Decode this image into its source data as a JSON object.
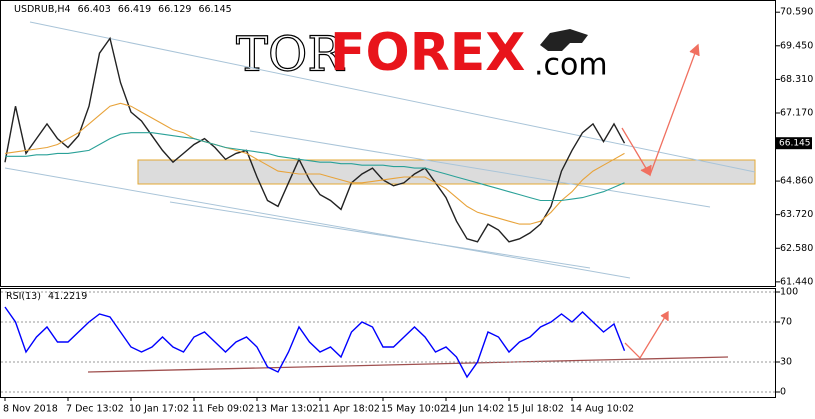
{
  "watermark": {
    "brand_light": "TOR",
    "brand_bold": "FOREX",
    "suffix": ".com"
  },
  "chart_data": [
    {
      "type": "line",
      "title": "USDRUB,H4",
      "ohlc": [
        66.403,
        66.419,
        66.129,
        66.145
      ],
      "last_price": 66.145,
      "categories": [
        "8 Nov 2018",
        null,
        null,
        null,
        null,
        null,
        "7 Dec 13:02",
        null,
        null,
        null,
        null,
        null,
        "10 Jan 17:02",
        null,
        null,
        null,
        null,
        null,
        "11 Feb 09:02",
        null,
        null,
        null,
        null,
        null,
        "13 Mar 13:02",
        null,
        null,
        null,
        null,
        null,
        "11 Apr 18:02",
        null,
        null,
        null,
        null,
        null,
        "15 May 10:02",
        null,
        null,
        null,
        null,
        null,
        "14 Jun 14:02",
        null,
        null,
        null,
        null,
        null,
        "15 Jul 18:02",
        null,
        null,
        null,
        null,
        null,
        "14 Aug 10:02",
        null,
        null,
        null,
        null,
        null
      ],
      "series": [
        {
          "color": "#222222",
          "values": [
            65.5,
            67.4,
            65.8,
            66.3,
            66.8,
            66.3,
            66.0,
            66.4,
            67.4,
            69.2,
            69.7,
            68.2,
            67.2,
            66.9,
            66.4,
            65.9,
            65.5,
            65.8,
            66.1,
            66.3,
            66.0,
            65.6,
            65.8,
            65.9,
            65.0,
            64.2,
            64.0,
            64.8,
            65.6,
            64.9,
            64.4,
            64.2,
            63.9,
            64.8,
            65.1,
            65.3,
            64.9,
            64.7,
            64.8,
            65.1,
            65.3,
            64.8,
            64.3,
            63.5,
            62.9,
            62.8,
            63.4,
            63.2,
            62.8,
            62.9,
            63.1,
            63.4,
            64.0,
            65.2,
            65.9,
            66.5,
            66.8,
            66.2,
            66.8,
            66.145
          ]
        },
        {
          "color": "#e8a33a",
          "values": [
            65.8,
            65.85,
            65.9,
            65.95,
            66.0,
            66.1,
            66.3,
            66.5,
            66.8,
            67.1,
            67.4,
            67.5,
            67.4,
            67.2,
            67.0,
            66.8,
            66.6,
            66.5,
            66.3,
            66.2,
            66.1,
            66.0,
            65.9,
            65.8,
            65.6,
            65.4,
            65.2,
            65.15,
            65.1,
            65.1,
            65.1,
            65.0,
            64.9,
            64.8,
            64.8,
            64.85,
            64.9,
            64.95,
            65.0,
            65.0,
            65.0,
            64.8,
            64.6,
            64.3,
            64.0,
            63.8,
            63.7,
            63.6,
            63.5,
            63.4,
            63.4,
            63.5,
            63.8,
            64.2,
            64.5,
            64.9,
            65.2,
            65.4,
            65.6,
            65.8
          ]
        },
        {
          "color": "#2aa198",
          "values": [
            65.7,
            65.7,
            65.7,
            65.75,
            65.75,
            65.8,
            65.8,
            65.85,
            65.9,
            66.1,
            66.3,
            66.45,
            66.5,
            66.5,
            66.5,
            66.45,
            66.4,
            66.35,
            66.3,
            66.2,
            66.1,
            66.0,
            65.95,
            65.9,
            65.85,
            65.8,
            65.7,
            65.65,
            65.6,
            65.55,
            65.5,
            65.5,
            65.45,
            65.45,
            65.4,
            65.4,
            65.4,
            65.35,
            65.35,
            65.3,
            65.3,
            65.2,
            65.1,
            65.0,
            64.9,
            64.8,
            64.7,
            64.6,
            64.5,
            64.4,
            64.3,
            64.2,
            64.2,
            64.2,
            64.25,
            64.3,
            64.4,
            64.5,
            64.65,
            64.8
          ]
        }
      ],
      "ylim": [
        61.3,
        70.97
      ],
      "yticks": [
        {
          "value": 70.59,
          "label": "70.590"
        },
        {
          "value": 69.45,
          "label": "69.450"
        },
        {
          "value": 68.31,
          "label": "68.310"
        },
        {
          "value": 67.17,
          "label": "67.170"
        },
        {
          "value": 64.86,
          "label": "64.860"
        },
        {
          "value": 63.72,
          "label": "63.720"
        },
        {
          "value": 62.58,
          "label": "62.580"
        },
        {
          "value": 61.44,
          "label": "61.440"
        }
      ]
    },
    {
      "type": "line",
      "title": "RSI(13)",
      "series": [
        {
          "color": "#0000ff",
          "values": [
            85,
            70,
            40,
            55,
            65,
            50,
            50,
            60,
            70,
            78,
            75,
            60,
            45,
            40,
            45,
            55,
            45,
            40,
            55,
            60,
            50,
            40,
            50,
            55,
            45,
            25,
            20,
            40,
            65,
            50,
            40,
            45,
            35,
            60,
            70,
            65,
            45,
            45,
            55,
            65,
            55,
            40,
            45,
            35,
            15,
            30,
            60,
            55,
            40,
            50,
            55,
            65,
            70,
            78,
            70,
            80,
            70,
            60,
            68,
            41.2219
          ]
        }
      ],
      "ylim": [
        -5,
        103
      ],
      "yticks": [
        100,
        70,
        30,
        0
      ]
    }
  ]
}
